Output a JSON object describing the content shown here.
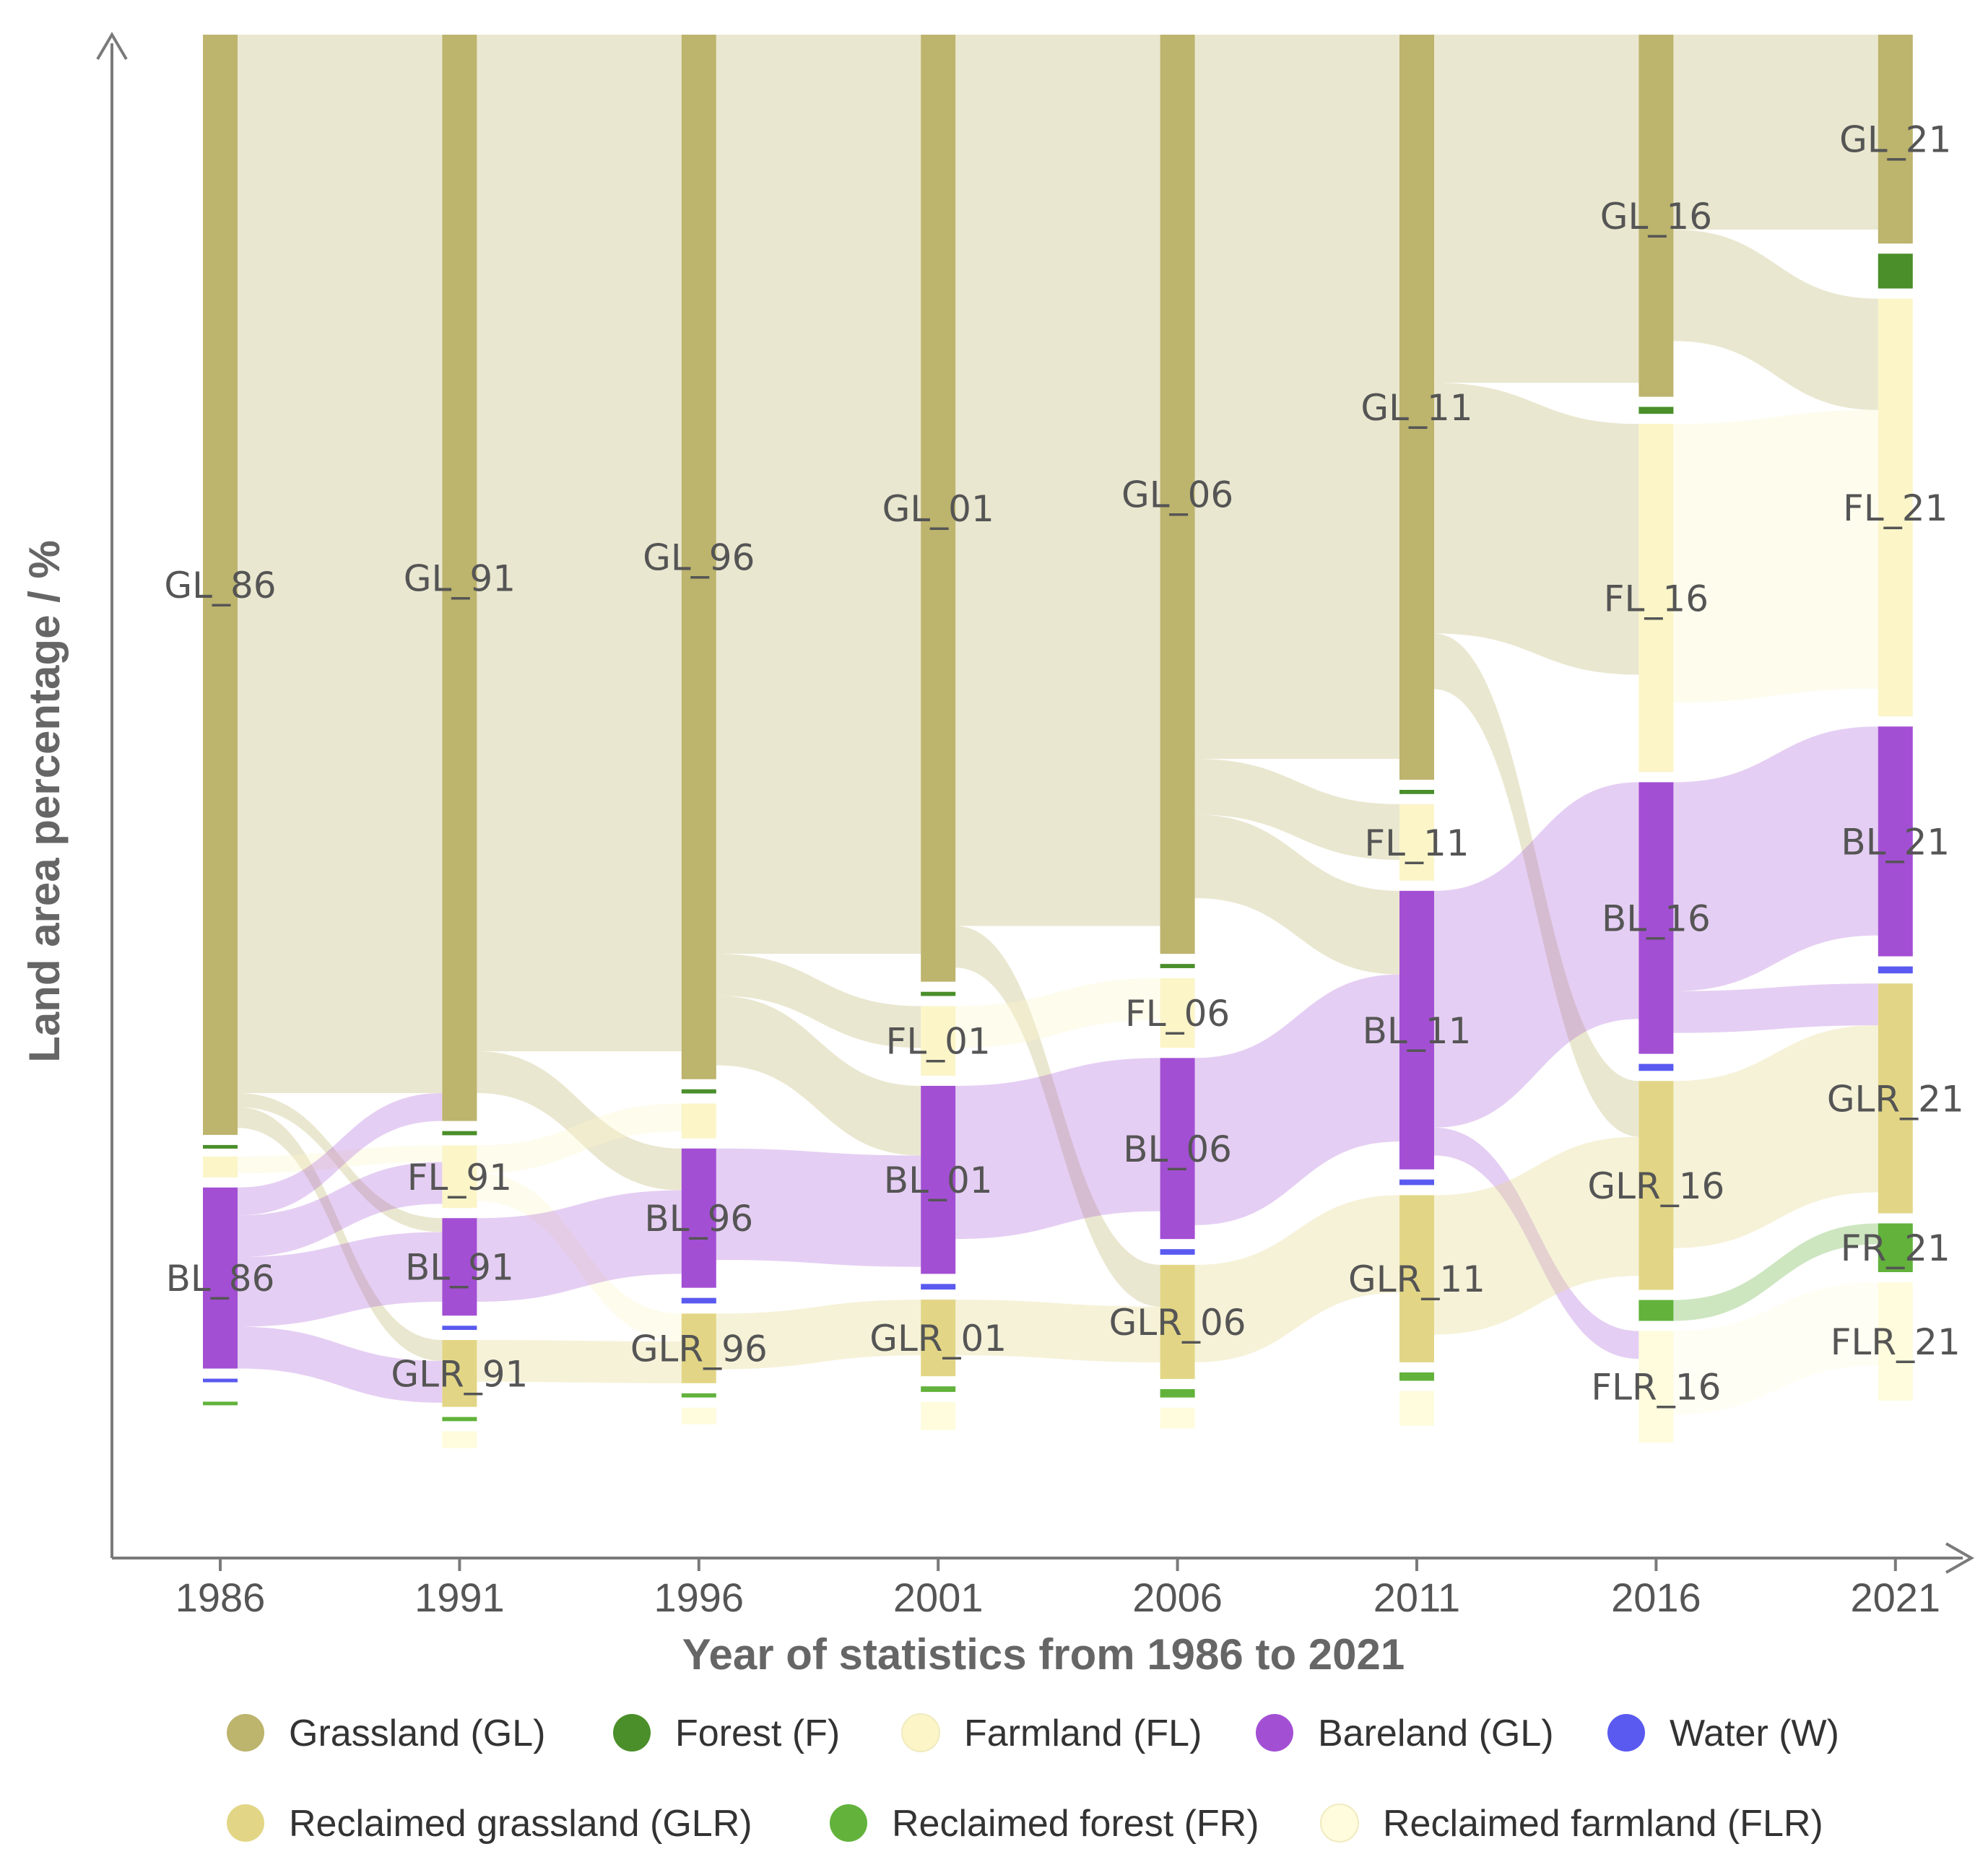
{
  "chart_data": {
    "type": "sankey",
    "ylabel": "Land area percentage / %",
    "xlabel": "Year of statistics from 1986 to 2021",
    "years": [
      "1986",
      "1991",
      "1996",
      "2001",
      "2006",
      "2011",
      "2016",
      "2021"
    ],
    "ylim": [
      0,
      100
    ],
    "categories": [
      {
        "key": "GL",
        "name": "Grassland (GL)",
        "color": "#BDB46D"
      },
      {
        "key": "F",
        "name": "Forest (F)",
        "color": "#4A8F2A"
      },
      {
        "key": "FL",
        "name": "Farmland (FL)",
        "color": "#FBF5C8"
      },
      {
        "key": "BL",
        "name": "Bareland (GL)",
        "color": "#A34FD4"
      },
      {
        "key": "W",
        "name": "Water (W)",
        "color": "#5A5AF0"
      },
      {
        "key": "GLR",
        "name": "Reclaimed grassland (GLR)",
        "color": "#E2D686"
      },
      {
        "key": "FR",
        "name": "Reclaimed forest (FR)",
        "color": "#62B23B"
      },
      {
        "key": "FLR",
        "name": "Reclaimed farmland (FLR)",
        "color": "#FEFCDD"
      }
    ],
    "legend_labels": [
      "Grassland (GL)",
      "Forest (F)",
      "Farmland (FL)",
      "Bareland (GL)",
      "Water (W)",
      "Reclaimed grassland (GLR)",
      "Reclaimed forest (FR)",
      "Reclaimed farmland (FLR)"
    ],
    "nodes": [
      {
        "year": "1986",
        "values": {
          "GL": 79.0,
          "F": 0.1,
          "FL": 1.5,
          "BL": 13.0,
          "W": 0.2,
          "GLR": 0.0,
          "FR": 0.1,
          "FLR": 0.0
        },
        "labels": [
          {
            "cat": "GL",
            "text": "GL_86"
          },
          {
            "cat": "BL",
            "text": "BL_86"
          }
        ]
      },
      {
        "year": "1991",
        "values": {
          "GL": 78.0,
          "F": 0.3,
          "FL": 4.5,
          "BL": 7.0,
          "W": 0.3,
          "GLR": 4.8,
          "FR": 0.3,
          "FLR": 1.2
        },
        "labels": [
          {
            "cat": "GL",
            "text": "GL_91"
          },
          {
            "cat": "FL",
            "text": "FL_91"
          },
          {
            "cat": "BL",
            "text": "BL_91"
          },
          {
            "cat": "GLR",
            "text": "GLR_91"
          }
        ]
      },
      {
        "year": "1996",
        "values": {
          "GL": 75.0,
          "F": 0.3,
          "FL": 2.5,
          "BL": 10.0,
          "W": 0.4,
          "GLR": 5.0,
          "FR": 0.3,
          "FLR": 1.2
        },
        "labels": [
          {
            "cat": "GL",
            "text": "GL_96"
          },
          {
            "cat": "BL",
            "text": "BL_96"
          },
          {
            "cat": "GLR",
            "text": "GLR_96"
          }
        ]
      },
      {
        "year": "2001",
        "values": {
          "GL": 68.0,
          "F": 0.3,
          "FL": 5.0,
          "BL": 13.5,
          "W": 0.4,
          "GLR": 5.5,
          "FR": 0.4,
          "FLR": 2.0
        },
        "labels": [
          {
            "cat": "GL",
            "text": "GL_01"
          },
          {
            "cat": "FL",
            "text": "FL_01"
          },
          {
            "cat": "BL",
            "text": "BL_01"
          },
          {
            "cat": "GLR",
            "text": "GLR_01"
          }
        ]
      },
      {
        "year": "2006",
        "values": {
          "GL": 66.0,
          "F": 0.3,
          "FL": 5.0,
          "BL": 13.0,
          "W": 0.4,
          "GLR": 8.2,
          "FR": 0.6,
          "FLR": 1.5
        },
        "labels": [
          {
            "cat": "GL",
            "text": "GL_06"
          },
          {
            "cat": "FL",
            "text": "FL_06"
          },
          {
            "cat": "BL",
            "text": "BL_06"
          },
          {
            "cat": "GLR",
            "text": "GLR_06"
          }
        ]
      },
      {
        "year": "2011",
        "values": {
          "GL": 53.5,
          "F": 0.3,
          "FL": 5.5,
          "BL": 20.0,
          "W": 0.4,
          "GLR": 12.0,
          "FR": 0.6,
          "FLR": 2.5
        },
        "labels": [
          {
            "cat": "GL",
            "text": "GL_11"
          },
          {
            "cat": "FL",
            "text": "FL_11"
          },
          {
            "cat": "BL",
            "text": "BL_11"
          },
          {
            "cat": "GLR",
            "text": "GLR_11"
          }
        ]
      },
      {
        "year": "2016",
        "values": {
          "GL": 26.0,
          "F": 0.5,
          "FL": 25.0,
          "BL": 19.5,
          "W": 0.5,
          "GLR": 15.0,
          "FR": 1.5,
          "FLR": 8.0
        },
        "labels": [
          {
            "cat": "GL",
            "text": "GL_16"
          },
          {
            "cat": "FL",
            "text": "FL_16"
          },
          {
            "cat": "BL",
            "text": "BL_16"
          },
          {
            "cat": "GLR",
            "text": "GLR_16"
          },
          {
            "cat": "FLR",
            "text": "FLR_16"
          }
        ]
      },
      {
        "year": "2021",
        "values": {
          "GL": 15.0,
          "F": 2.5,
          "FL": 30.0,
          "BL": 16.5,
          "W": 0.5,
          "GLR": 16.5,
          "FR": 3.5,
          "FLR": 8.5
        },
        "labels": [
          {
            "cat": "GL",
            "text": "GL_21"
          },
          {
            "cat": "FL",
            "text": "FL_21"
          },
          {
            "cat": "BL",
            "text": "BL_21"
          },
          {
            "cat": "GLR",
            "text": "GLR_21"
          },
          {
            "cat": "FR",
            "text": "FR_21"
          },
          {
            "cat": "FLR",
            "text": "FLR_21"
          }
        ]
      }
    ],
    "flows": [
      {
        "period": 0,
        "source": "GL",
        "target": "GL",
        "value": 76.0
      },
      {
        "period": 0,
        "source": "GL",
        "target": "BL",
        "value": 1.0
      },
      {
        "period": 0,
        "source": "GL",
        "target": "GLR",
        "value": 1.5
      },
      {
        "period": 0,
        "source": "FL",
        "target": "FL",
        "value": 1.2
      },
      {
        "period": 0,
        "source": "BL",
        "target": "GL",
        "value": 2.0
      },
      {
        "period": 0,
        "source": "BL",
        "target": "FL",
        "value": 3.0
      },
      {
        "period": 0,
        "source": "BL",
        "target": "BL",
        "value": 5.0
      },
      {
        "period": 0,
        "source": "BL",
        "target": "GLR",
        "value": 3.0
      },
      {
        "period": 1,
        "source": "GL",
        "target": "GL",
        "value": 73.0
      },
      {
        "period": 1,
        "source": "GL",
        "target": "BL",
        "value": 3.0
      },
      {
        "period": 1,
        "source": "FL",
        "target": "FL",
        "value": 2.0
      },
      {
        "period": 1,
        "source": "FL",
        "target": "GLR",
        "value": 2.0
      },
      {
        "period": 1,
        "source": "BL",
        "target": "BL",
        "value": 6.0
      },
      {
        "period": 1,
        "source": "GLR",
        "target": "GLR",
        "value": 3.0
      },
      {
        "period": 2,
        "source": "GL",
        "target": "GL",
        "value": 66.0
      },
      {
        "period": 2,
        "source": "GL",
        "target": "BL",
        "value": 5.0
      },
      {
        "period": 2,
        "source": "GL",
        "target": "FL",
        "value": 3.0
      },
      {
        "period": 2,
        "source": "BL",
        "target": "BL",
        "value": 8.0
      },
      {
        "period": 2,
        "source": "GLR",
        "target": "GLR",
        "value": 4.0
      },
      {
        "period": 3,
        "source": "GL",
        "target": "GL",
        "value": 64.0
      },
      {
        "period": 3,
        "source": "GL",
        "target": "GLR",
        "value": 3.0
      },
      {
        "period": 3,
        "source": "FL",
        "target": "FL",
        "value": 3.0
      },
      {
        "period": 3,
        "source": "BL",
        "target": "BL",
        "value": 11.0
      },
      {
        "period": 3,
        "source": "GLR",
        "target": "GLR",
        "value": 4.0
      },
      {
        "period": 4,
        "source": "GL",
        "target": "GL",
        "value": 52.0
      },
      {
        "period": 4,
        "source": "GL",
        "target": "BL",
        "value": 6.0
      },
      {
        "period": 4,
        "source": "GL",
        "target": "FL",
        "value": 4.0
      },
      {
        "period": 4,
        "source": "BL",
        "target": "BL",
        "value": 12.0
      },
      {
        "period": 4,
        "source": "GLR",
        "target": "GLR",
        "value": 7.0
      },
      {
        "period": 5,
        "source": "GL",
        "target": "GL",
        "value": 25.0
      },
      {
        "period": 5,
        "source": "GL",
        "target": "FL",
        "value": 18.0
      },
      {
        "period": 5,
        "source": "GL",
        "target": "GLR",
        "value": 4.0
      },
      {
        "period": 5,
        "source": "BL",
        "target": "BL",
        "value": 17.0
      },
      {
        "period": 5,
        "source": "BL",
        "target": "FLR",
        "value": 2.0
      },
      {
        "period": 5,
        "source": "GLR",
        "target": "GLR",
        "value": 10.0
      },
      {
        "period": 6,
        "source": "GL",
        "target": "GL",
        "value": 14.0
      },
      {
        "period": 6,
        "source": "GL",
        "target": "FL",
        "value": 8.0
      },
      {
        "period": 6,
        "source": "FL",
        "target": "FL",
        "value": 20.0
      },
      {
        "period": 6,
        "source": "BL",
        "target": "BL",
        "value": 15.0
      },
      {
        "period": 6,
        "source": "BL",
        "target": "GLR",
        "value": 3.0
      },
      {
        "period": 6,
        "source": "GLR",
        "target": "GLR",
        "value": 12.0
      },
      {
        "period": 6,
        "source": "FR",
        "target": "FR",
        "value": 1.5
      },
      {
        "period": 6,
        "source": "FLR",
        "target": "FLR",
        "value": 6.0
      }
    ]
  }
}
